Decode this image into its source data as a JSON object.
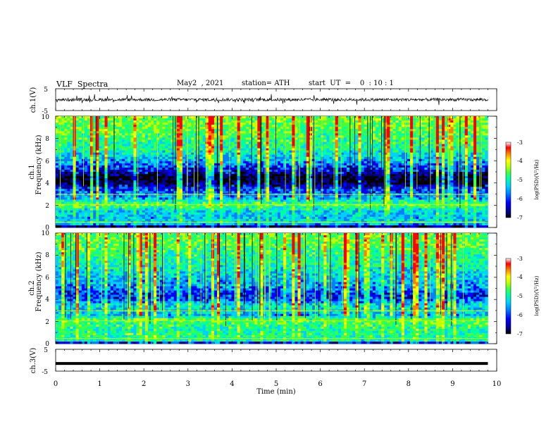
{
  "header": {
    "title": "VLF  Spectra",
    "date": "May2  , 2021",
    "station": "station= ATH",
    "start": "start  UT  =    0  : 10 : 1"
  },
  "colors": {
    "colormap": [
      "#000000",
      "#00008b",
      "#0000ff",
      "#0080ff",
      "#00d0ff",
      "#00ffa0",
      "#40ff40",
      "#c0ff00",
      "#ffff00",
      "#ff8000",
      "#ff0000",
      "#ffffff"
    ]
  },
  "chart_data": [
    {
      "type": "line",
      "name": "ch1-waveform",
      "ylabel": "ch.1(V)",
      "ylim": [
        -5,
        5
      ],
      "yticks": [
        "5",
        "-5"
      ],
      "xlim": [
        0,
        10
      ],
      "trace_level_V": 0,
      "description_values": "noisy waveform fluctuating about 0 V over 0–9.8 min"
    },
    {
      "type": "heatmap",
      "name": "ch1-spectrogram",
      "ylabel_lines": [
        "ch.1",
        "Frequency  (kHz)"
      ],
      "ylim": [
        0,
        10
      ],
      "yticks": [
        "0",
        "2",
        "4",
        "6",
        "8",
        "10"
      ],
      "xlim": [
        0,
        10
      ],
      "data_end_min": 9.8,
      "colorbar": {
        "label": "log(PSD)(V²/Hz)",
        "range": [
          -7,
          -3
        ],
        "ticks": [
          "-3",
          "-4",
          "-5",
          "-6",
          "-7"
        ]
      },
      "band_profile_kHz_logpsd": [
        [
          0.0,
          -7.0
        ],
        [
          0.2,
          -5.8
        ],
        [
          0.5,
          -5.2
        ],
        [
          0.8,
          -5.5
        ],
        [
          1.0,
          -5.4
        ],
        [
          1.5,
          -5.3
        ],
        [
          2.0,
          -4.6
        ],
        [
          2.3,
          -5.0
        ],
        [
          2.7,
          -5.6
        ],
        [
          3.0,
          -5.7
        ],
        [
          3.5,
          -6.0
        ],
        [
          4.0,
          -6.7
        ],
        [
          4.5,
          -6.8
        ],
        [
          5.0,
          -6.2
        ],
        [
          5.5,
          -5.9
        ],
        [
          6.0,
          -5.5
        ],
        [
          6.5,
          -5.3
        ],
        [
          7.0,
          -5.0
        ],
        [
          8.0,
          -4.8
        ],
        [
          9.0,
          -4.6
        ],
        [
          10.0,
          -4.5
        ]
      ]
    },
    {
      "type": "heatmap",
      "name": "ch2-spectrogram",
      "ylabel_lines": [
        "ch.2",
        "Frequency  (kHz)"
      ],
      "ylim": [
        0,
        10
      ],
      "yticks": [
        "0",
        "2",
        "4",
        "6",
        "8",
        "10"
      ],
      "xlim": [
        0,
        10
      ],
      "data_end_min": 9.8,
      "colorbar": {
        "label": "log(PSD)(V²/Hz)",
        "range": [
          -7,
          -3
        ],
        "ticks": [
          "-3",
          "-4",
          "-5",
          "-6",
          "-7"
        ]
      },
      "band_profile_kHz_logpsd": [
        [
          0.0,
          -6.5
        ],
        [
          0.3,
          -5.0
        ],
        [
          0.8,
          -4.9
        ],
        [
          1.2,
          -5.0
        ],
        [
          1.8,
          -4.8
        ],
        [
          2.2,
          -4.7
        ],
        [
          2.6,
          -5.5
        ],
        [
          3.0,
          -5.3
        ],
        [
          3.5,
          -5.2
        ],
        [
          4.0,
          -5.9
        ],
        [
          4.5,
          -6.0
        ],
        [
          5.0,
          -5.6
        ],
        [
          5.5,
          -5.5
        ],
        [
          6.0,
          -5.4
        ],
        [
          7.0,
          -5.1
        ],
        [
          8.0,
          -4.9
        ],
        [
          9.0,
          -4.7
        ],
        [
          10.0,
          -4.6
        ]
      ]
    },
    {
      "type": "line",
      "name": "ch3-waveform",
      "ylabel": "ch.3(V)",
      "ylim": [
        -5,
        5
      ],
      "yticks": [
        "5",
        "-5"
      ],
      "xlim": [
        0,
        10
      ],
      "trace_level_V": -1.5,
      "description_values": "flat thick trace near -1.5 V over 0–9.8 min"
    }
  ],
  "xaxis": {
    "label": "Time  (min)",
    "ticks": [
      "0",
      "1",
      "2",
      "3",
      "4",
      "5",
      "6",
      "7",
      "8",
      "9",
      "10"
    ],
    "range": [
      0,
      10
    ]
  }
}
